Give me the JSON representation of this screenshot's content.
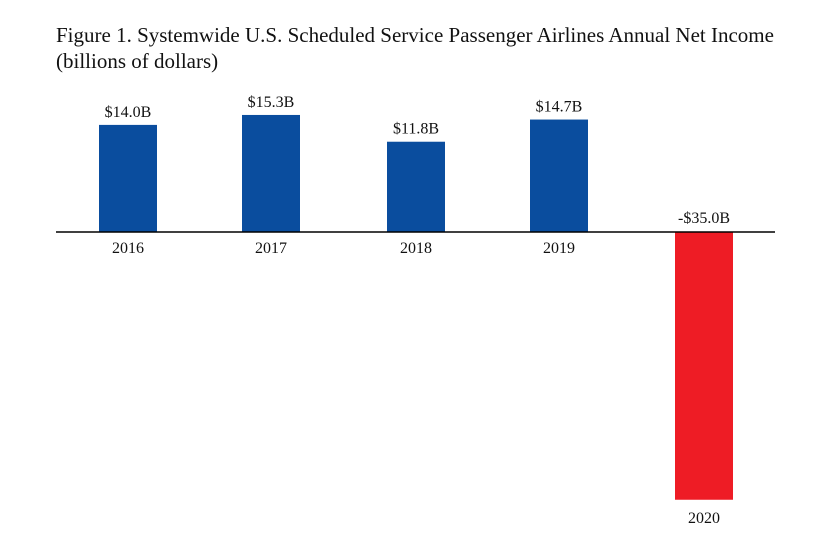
{
  "chart_data": {
    "type": "bar",
    "title": "Figure 1. Systemwide U.S. Scheduled Service Passenger Airlines Annual Net Income",
    "subtitle": "(billions of dollars)",
    "categories": [
      "2016",
      "2017",
      "2018",
      "2019",
      "2020"
    ],
    "values": [
      14.0,
      15.3,
      11.8,
      14.7,
      -35.0
    ],
    "value_labels": [
      "$14.0B",
      "$15.3B",
      "$11.8B",
      "$14.7B",
      "-$35.0B"
    ],
    "xlabel": "",
    "ylabel": "",
    "ylim": [
      -35,
      15.3
    ],
    "grid": false,
    "legend": "none",
    "colors": {
      "positive": "#0a4d9e",
      "negative": "#ee1c25",
      "axis": "#000000"
    }
  }
}
